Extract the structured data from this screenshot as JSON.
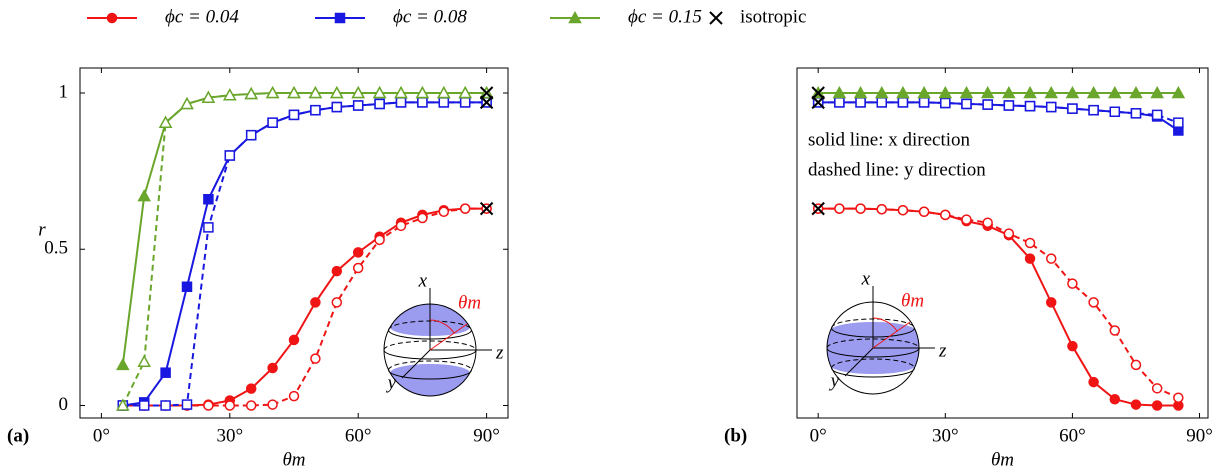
{
  "chart_data": [
    {
      "type": "line",
      "panel_label": "(a)",
      "xlabel": "θm",
      "ylabel": "r",
      "xlim": [
        -5,
        95
      ],
      "ylim": [
        -0.04,
        1.08
      ],
      "xticks": [
        {
          "value": 0,
          "label": "0°"
        },
        {
          "value": 30,
          "label": "30°"
        },
        {
          "value": 60,
          "label": "60°"
        },
        {
          "value": 90,
          "label": "90°"
        }
      ],
      "yticks": [
        0,
        0.5,
        1
      ],
      "inset": {
        "axis_labels": [
          "x",
          "z",
          "y"
        ],
        "angle_label": "θm",
        "shading": "caps"
      },
      "x": [
        5,
        10,
        15,
        20,
        25,
        30,
        35,
        40,
        45,
        50,
        55,
        60,
        65,
        70,
        75,
        80,
        85,
        90
      ],
      "series": [
        {
          "name": "ϕc = 0.04",
          "color": "#f01414",
          "marker": "circle",
          "dashed": false,
          "values": [
            0,
            0,
            0,
            0,
            0.003,
            0.016,
            0.054,
            0.12,
            0.21,
            0.33,
            0.43,
            0.49,
            0.54,
            0.585,
            0.61,
            0.625,
            0.63,
            0.63
          ]
        },
        {
          "color": "#f01414",
          "marker": "circle",
          "dashed": true,
          "values": [
            0,
            0,
            0,
            0,
            0,
            0,
            0,
            0.003,
            0.03,
            0.15,
            0.33,
            0.44,
            0.53,
            0.575,
            0.6,
            0.62,
            0.63,
            0.63
          ]
        },
        {
          "name": "ϕc = 0.08",
          "color": "#1818e0",
          "marker": "square",
          "dashed": false,
          "values": [
            0,
            0.01,
            0.105,
            0.38,
            0.66,
            0.8,
            0.865,
            0.905,
            0.93,
            0.945,
            0.955,
            0.96,
            0.965,
            0.97,
            0.97,
            0.97,
            0.97,
            0.97
          ]
        },
        {
          "color": "#1818e0",
          "marker": "square",
          "dashed": true,
          "values": [
            0,
            0,
            0,
            0.003,
            0.57,
            0.8,
            0.865,
            0.905,
            0.93,
            0.945,
            0.955,
            0.96,
            0.965,
            0.97,
            0.97,
            0.97,
            0.97,
            0.97
          ]
        },
        {
          "name": "ϕc = 0.15",
          "color": "#6aa62c",
          "marker": "triangle",
          "dashed": false,
          "values": [
            0.13,
            0.67,
            0.905,
            0.965,
            0.985,
            0.993,
            0.997,
            1,
            1,
            1,
            1,
            1,
            1,
            1,
            1,
            1,
            1,
            1
          ]
        },
        {
          "color": "#6aa62c",
          "marker": "triangle",
          "dashed": true,
          "values": [
            0,
            0.14,
            0.905,
            0.965,
            0.985,
            0.993,
            0.997,
            1,
            1,
            1,
            1,
            1,
            1,
            1,
            1,
            1,
            1,
            1
          ]
        },
        {
          "name": "isotropic",
          "color": "#000000",
          "marker": "cross",
          "x": [
            90,
            90,
            90
          ],
          "values": [
            1,
            0.97,
            0.63
          ]
        }
      ]
    },
    {
      "type": "line",
      "panel_label": "(b)",
      "xlabel": "θm",
      "xlim": [
        -5,
        92
      ],
      "ylim": [
        -0.04,
        1.08
      ],
      "xticks": [
        {
          "value": 0,
          "label": "0°"
        },
        {
          "value": 30,
          "label": "30°"
        },
        {
          "value": 60,
          "label": "60°"
        },
        {
          "value": 90,
          "label": "90°"
        }
      ],
      "annotations": [
        "solid line: x direction",
        "dashed line: y direction"
      ],
      "inset": {
        "axis_labels": [
          "x",
          "z",
          "y"
        ],
        "angle_label": "θm",
        "shading": "band"
      },
      "x": [
        0,
        5,
        10,
        15,
        20,
        25,
        30,
        35,
        40,
        45,
        50,
        55,
        60,
        65,
        70,
        75,
        80,
        85
      ],
      "series": [
        {
          "color": "#f01414",
          "marker": "circle",
          "dashed": false,
          "values": [
            0.63,
            0.63,
            0.63,
            0.628,
            0.625,
            0.62,
            0.61,
            0.59,
            0.575,
            0.545,
            0.47,
            0.33,
            0.19,
            0.075,
            0.02,
            0.003,
            0,
            0
          ]
        },
        {
          "color": "#f01414",
          "marker": "circle",
          "dashed": true,
          "values": [
            0.63,
            0.63,
            0.63,
            0.628,
            0.625,
            0.62,
            0.61,
            0.595,
            0.585,
            0.55,
            0.52,
            0.47,
            0.39,
            0.33,
            0.24,
            0.13,
            0.055,
            0.025
          ]
        },
        {
          "color": "#1818e0",
          "marker": "square",
          "dashed": false,
          "values": [
            0.97,
            0.97,
            0.97,
            0.97,
            0.97,
            0.97,
            0.968,
            0.965,
            0.963,
            0.96,
            0.958,
            0.955,
            0.95,
            0.945,
            0.94,
            0.935,
            0.925,
            0.88
          ]
        },
        {
          "color": "#1818e0",
          "marker": "square",
          "dashed": true,
          "values": [
            0.97,
            0.97,
            0.97,
            0.97,
            0.97,
            0.97,
            0.968,
            0.965,
            0.963,
            0.96,
            0.958,
            0.955,
            0.95,
            0.945,
            0.94,
            0.935,
            0.93,
            0.905
          ]
        },
        {
          "color": "#6aa62c",
          "marker": "triangle",
          "dashed": false,
          "values": [
            1,
            1,
            1,
            1,
            1,
            1,
            1,
            1,
            1,
            1,
            1,
            1,
            1,
            1,
            1,
            1,
            1,
            1
          ]
        },
        {
          "color": "#000000",
          "marker": "cross",
          "x": [
            0,
            0,
            0
          ],
          "values": [
            1,
            0.97,
            0.63
          ]
        }
      ]
    }
  ]
}
